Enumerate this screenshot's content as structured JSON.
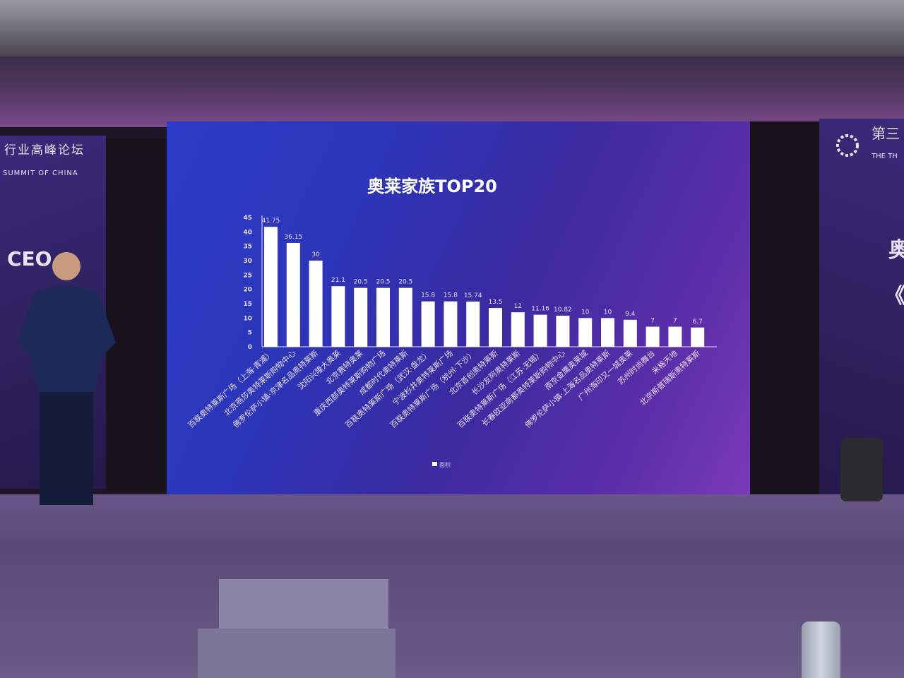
{
  "scene": {
    "left_banner_line1": "行业高峰论坛",
    "left_banner_line2": "SUMMIT OF CHINA",
    "left_banner_line3": "CEO",
    "right_banner_line1": "第三",
    "right_banner_line2": "THE TH",
    "right_banner_line3": "奥",
    "right_banner_line4": "《"
  },
  "chart_data": {
    "type": "bar",
    "title": "奥莱家族TOP20",
    "xlabel": "",
    "ylabel": "",
    "ylim": [
      0,
      45
    ],
    "yticks": [
      0,
      5,
      10,
      15,
      20,
      25,
      30,
      35,
      40,
      45
    ],
    "grid": false,
    "legend": {
      "placement": "bottom",
      "entries": [
        "面积"
      ]
    },
    "colors": {
      "bar": "#ffffff",
      "text": "#e8dcf4"
    },
    "categories": [
      "百联奥特莱斯广场（上海·青浦）",
      "北京燕莎奥特莱斯购物中心",
      "佛罗伦萨小镇·京津名品奥特莱斯",
      "沈阳兴隆大奥莱",
      "北京赛特奥莱",
      "重庆西部奥特莱斯购物广场",
      "成都时代奥特莱斯",
      "百联奥特莱斯广场（武汉·盘龙）",
      "宁波杉井奥特莱斯广场",
      "百联奥特莱斯广场（杭州·下沙）",
      "北京首创奥特莱斯",
      "长沙友阿奥特莱斯",
      "百联奥特莱斯广场（江苏·无锡）",
      "长春欧亚商都奥特莱斯购物中心",
      "南京金鹰奥莱城",
      "佛罗伦萨小镇·上海名品奥特莱斯",
      "广州海印又一城奥莱",
      "苏州时尚舞台",
      "米格天地",
      "北京斯普瑞斯奥特莱斯"
    ],
    "values": [
      41.75,
      36.15,
      30,
      21.1,
      20.5,
      20.5,
      20.5,
      15.8,
      15.8,
      15.74,
      13.5,
      12,
      11.16,
      10.82,
      10,
      10,
      9.4,
      7,
      7,
      6.7
    ]
  }
}
